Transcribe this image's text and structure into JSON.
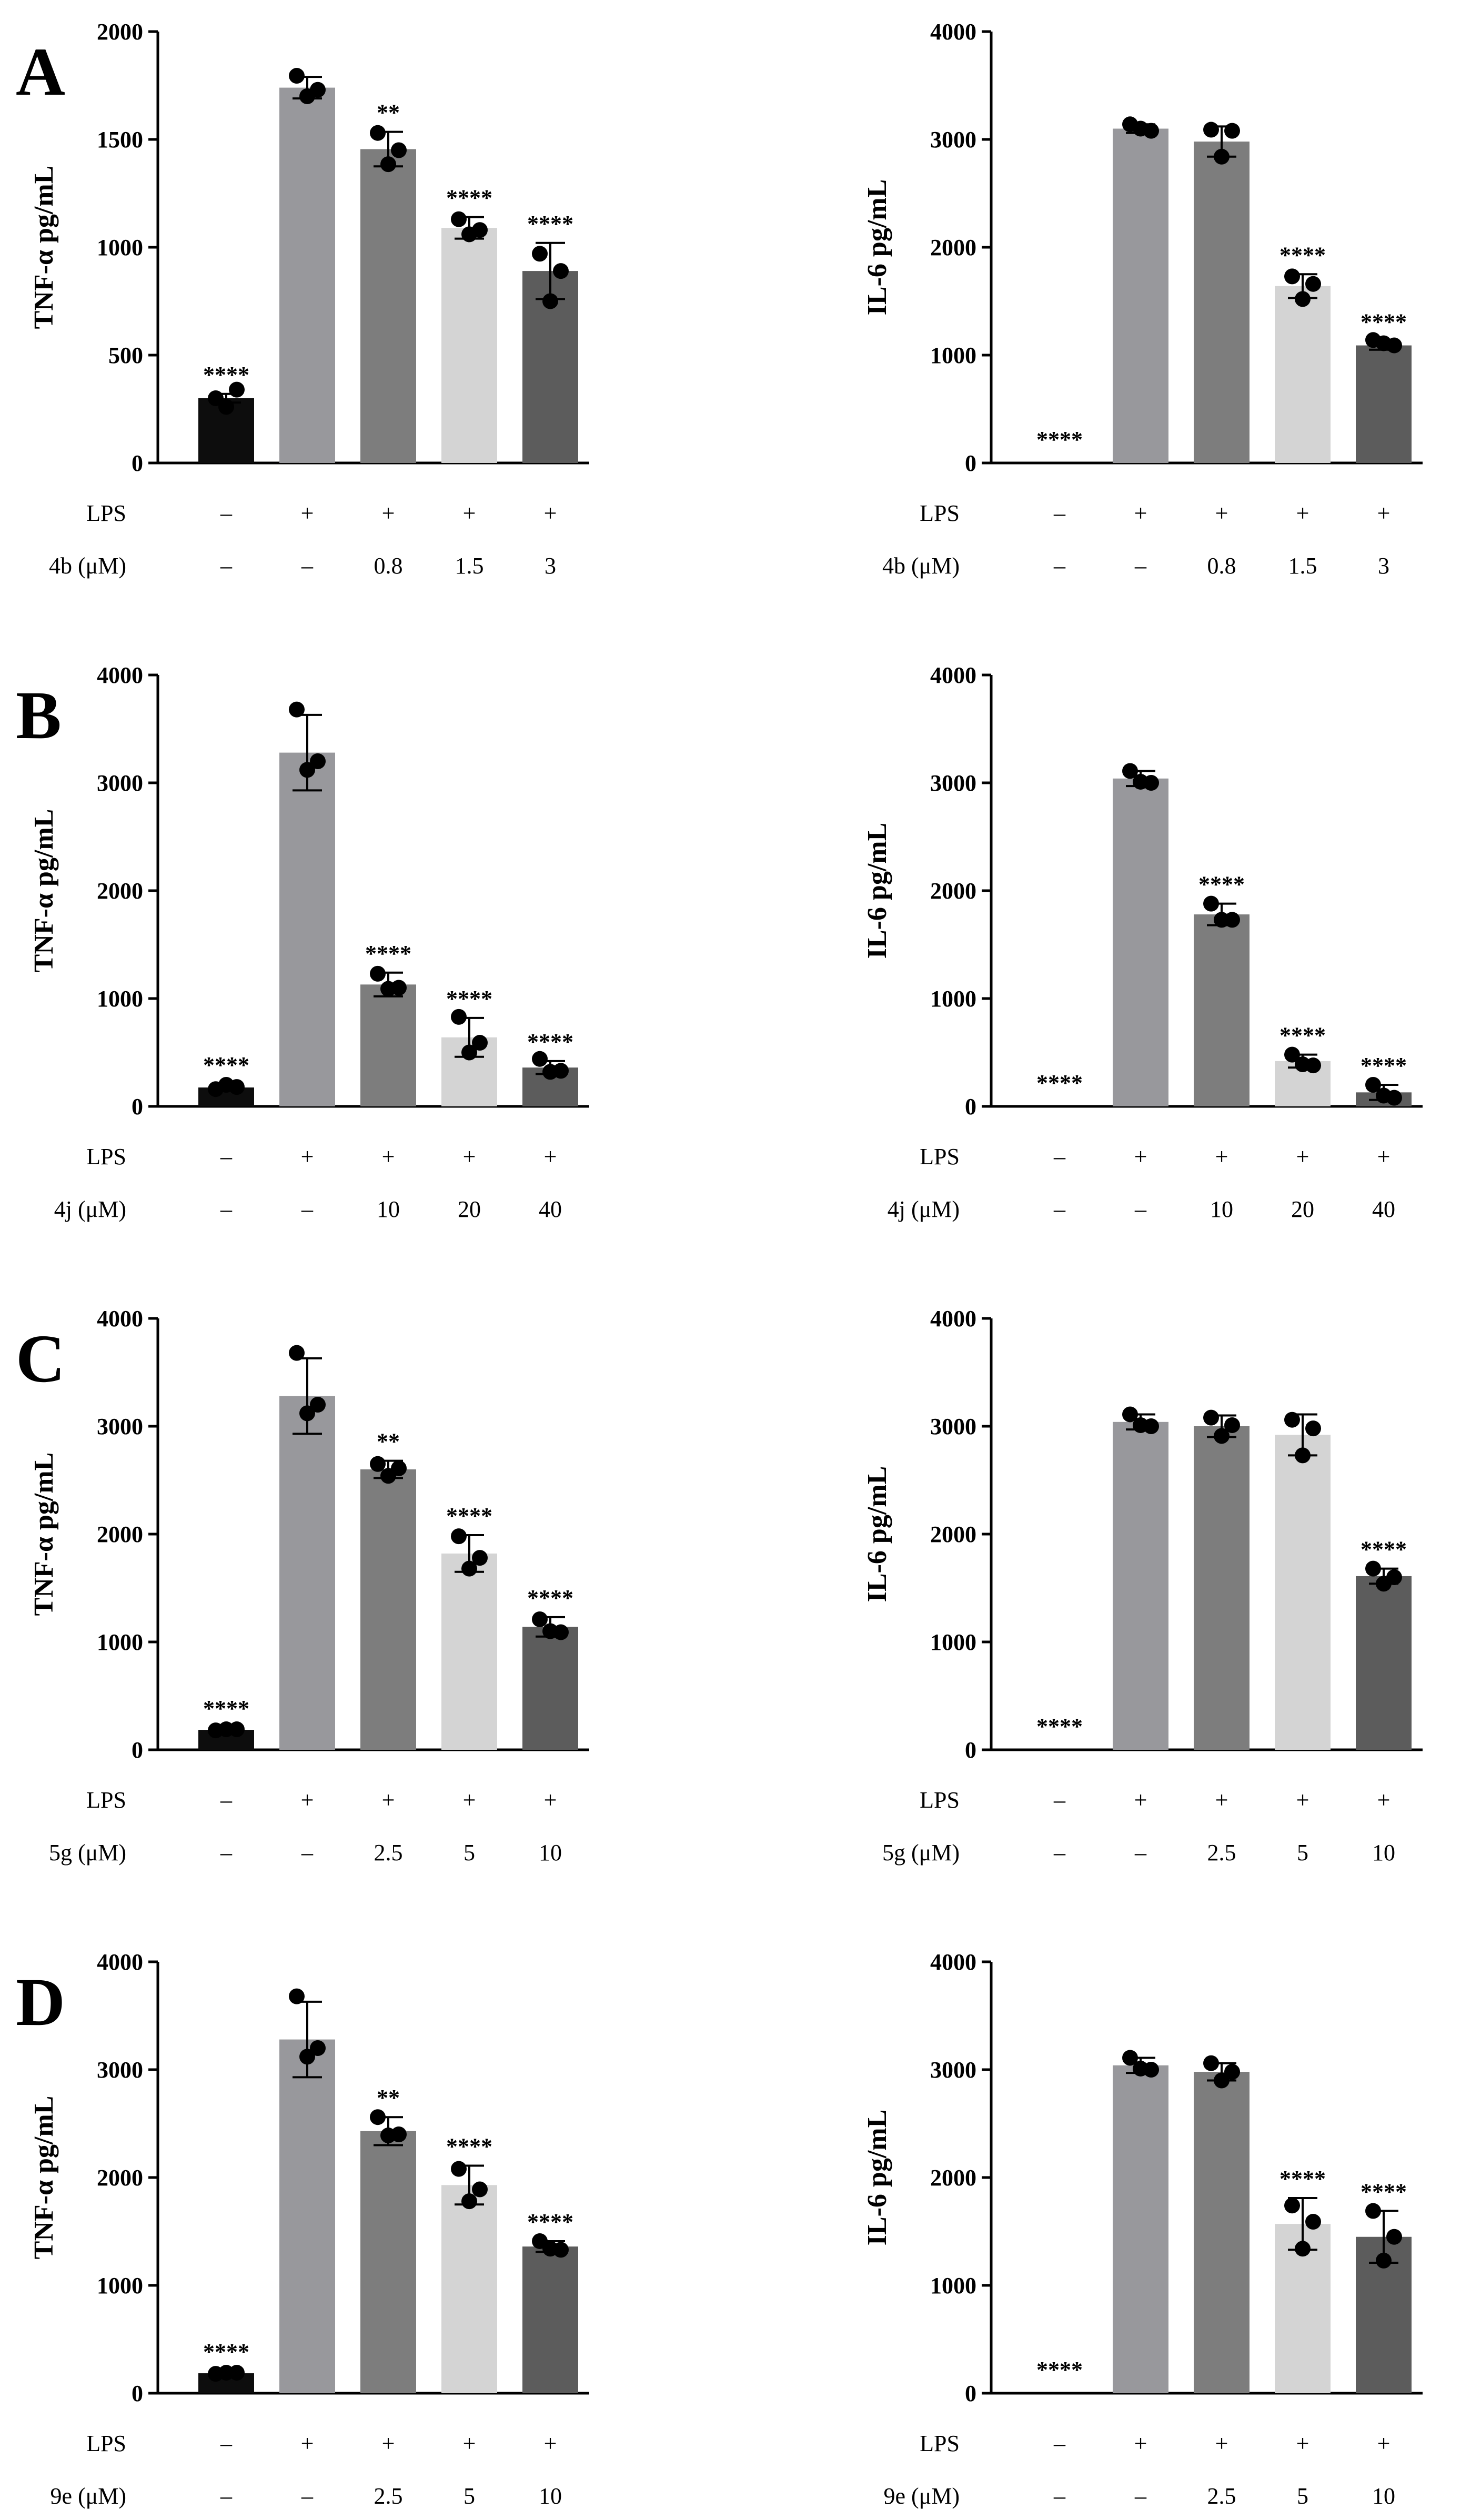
{
  "panels": [
    {
      "letter": "A",
      "compound_label": "4b (μM)",
      "doses": [
        "–",
        "–",
        "0.8",
        "1.5",
        "3"
      ]
    },
    {
      "letter": "B",
      "compound_label": "4j (μM)",
      "doses": [
        "–",
        "–",
        "10",
        "20",
        "40"
      ]
    },
    {
      "letter": "C",
      "compound_label": "5g (μM)",
      "doses": [
        "–",
        "–",
        "2.5",
        "5",
        "10"
      ]
    },
    {
      "letter": "D",
      "compound_label": "9e (μM)",
      "doses": [
        "–",
        "–",
        "2.5",
        "5",
        "10"
      ]
    }
  ],
  "lps": {
    "label": "LPS",
    "signs": [
      "–",
      "+",
      "+",
      "+",
      "+"
    ]
  },
  "bar_colors": [
    "#0d0d0d",
    "#98989c",
    "#7d7d7d",
    "#d4d4d4",
    "#5c5c5c"
  ],
  "chart_data": [
    {
      "id": "A-tnf",
      "type": "bar",
      "title": "",
      "ylabel": "TNF-α pg/mL",
      "ylim": [
        0,
        2000
      ],
      "yticks": [
        "0",
        "500",
        "1000",
        "1500",
        "2000"
      ],
      "values": [
        300,
        1740,
        1455,
        1090,
        890
      ],
      "errors": [
        20,
        50,
        80,
        50,
        130
      ],
      "points": [
        [
          300,
          340,
          260
        ],
        [
          1795,
          1730,
          1700
        ],
        [
          1530,
          1450,
          1385
        ],
        [
          1130,
          1080,
          1060
        ],
        [
          970,
          890,
          750
        ]
      ],
      "significance": [
        "****",
        "",
        "**",
        "****",
        "****"
      ]
    },
    {
      "id": "A-il6",
      "type": "bar",
      "title": "",
      "ylabel": "IL-6 pg/mL",
      "ylim": [
        0,
        4000
      ],
      "yticks": [
        "0",
        "1000",
        "2000",
        "3000",
        "4000"
      ],
      "values": [
        0,
        3100,
        2980,
        1640,
        1090
      ],
      "errors": [
        0,
        40,
        140,
        110,
        40
      ],
      "points": [
        [
          0,
          0,
          0
        ],
        [
          3140,
          3080,
          3100
        ],
        [
          3090,
          3080,
          2840
        ],
        [
          1730,
          1660,
          1520
        ],
        [
          1140,
          1090,
          1110
        ]
      ],
      "significance": [
        "****",
        "",
        "",
        "****",
        "****"
      ]
    },
    {
      "id": "B-tnf",
      "type": "bar",
      "title": "",
      "ylabel": "TNF-α pg/mL",
      "ylim": [
        0,
        4000
      ],
      "yticks": [
        "0",
        "1000",
        "2000",
        "3000",
        "4000"
      ],
      "values": [
        175,
        3280,
        1130,
        640,
        360
      ],
      "errors": [
        30,
        350,
        110,
        180,
        60
      ],
      "points": [
        [
          160,
          180,
          200
        ],
        [
          3680,
          3200,
          3120
        ],
        [
          1230,
          1100,
          1090
        ],
        [
          830,
          590,
          500
        ],
        [
          440,
          330,
          320
        ]
      ],
      "significance": [
        "****",
        "",
        "****",
        "****",
        "****"
      ]
    },
    {
      "id": "B-il6",
      "type": "bar",
      "title": "",
      "ylabel": "IL-6 pg/mL",
      "ylim": [
        0,
        4000
      ],
      "yticks": [
        "0",
        "1000",
        "2000",
        "3000",
        "4000"
      ],
      "values": [
        0,
        3040,
        1780,
        420,
        130
      ],
      "errors": [
        0,
        70,
        100,
        60,
        70
      ],
      "points": [
        [
          0,
          0,
          0
        ],
        [
          3110,
          3000,
          3010
        ],
        [
          1880,
          1730,
          1730
        ],
        [
          480,
          380,
          390
        ],
        [
          200,
          80,
          100
        ]
      ],
      "significance": [
        "****",
        "",
        "****",
        "****",
        "****"
      ]
    },
    {
      "id": "C-tnf",
      "type": "bar",
      "title": "",
      "ylabel": "TNF-α pg/mL",
      "ylim": [
        0,
        4000
      ],
      "yticks": [
        "0",
        "1000",
        "2000",
        "3000",
        "4000"
      ],
      "values": [
        185,
        3280,
        2600,
        1820,
        1140
      ],
      "errors": [
        20,
        350,
        80,
        170,
        90
      ],
      "points": [
        [
          180,
          190,
          190
        ],
        [
          3680,
          3200,
          3120
        ],
        [
          2650,
          2610,
          2540
        ],
        [
          1980,
          1780,
          1680
        ],
        [
          1210,
          1090,
          1100
        ]
      ],
      "significance": [
        "****",
        "",
        "**",
        "****",
        "****"
      ]
    },
    {
      "id": "C-il6",
      "type": "bar",
      "title": "",
      "ylabel": "IL-6 pg/mL",
      "ylim": [
        0,
        4000
      ],
      "yticks": [
        "0",
        "1000",
        "2000",
        "3000",
        "4000"
      ],
      "values": [
        0,
        3040,
        3000,
        2920,
        1610
      ],
      "errors": [
        0,
        70,
        100,
        190,
        70
      ],
      "points": [
        [
          0,
          0,
          0
        ],
        [
          3110,
          3000,
          3010
        ],
        [
          3080,
          3010,
          2910
        ],
        [
          3060,
          2980,
          2730
        ],
        [
          1680,
          1600,
          1540
        ]
      ],
      "significance": [
        "****",
        "",
        "",
        "",
        "****"
      ]
    },
    {
      "id": "D-tnf",
      "type": "bar",
      "title": "",
      "ylabel": "TNF-α pg/mL",
      "ylim": [
        0,
        4000
      ],
      "yticks": [
        "0",
        "1000",
        "2000",
        "3000",
        "4000"
      ],
      "values": [
        185,
        3280,
        2430,
        1930,
        1360
      ],
      "errors": [
        20,
        350,
        130,
        180,
        50
      ],
      "points": [
        [
          180,
          190,
          190
        ],
        [
          3680,
          3200,
          3120
        ],
        [
          2560,
          2400,
          2390
        ],
        [
          2080,
          1890,
          1780
        ],
        [
          1410,
          1330,
          1340
        ]
      ],
      "significance": [
        "****",
        "",
        "**",
        "****",
        "****"
      ]
    },
    {
      "id": "D-il6",
      "type": "bar",
      "title": "",
      "ylabel": "IL-6 pg/mL",
      "ylim": [
        0,
        4000
      ],
      "yticks": [
        "0",
        "1000",
        "2000",
        "3000",
        "4000"
      ],
      "values": [
        0,
        3040,
        2980,
        1570,
        1450
      ],
      "errors": [
        0,
        70,
        80,
        240,
        240
      ],
      "points": [
        [
          0,
          0,
          0
        ],
        [
          3110,
          3000,
          3010
        ],
        [
          3060,
          2980,
          2900
        ],
        [
          1740,
          1590,
          1340
        ],
        [
          1690,
          1450,
          1230
        ]
      ],
      "significance": [
        "****",
        "",
        "",
        "****",
        "****"
      ]
    }
  ]
}
